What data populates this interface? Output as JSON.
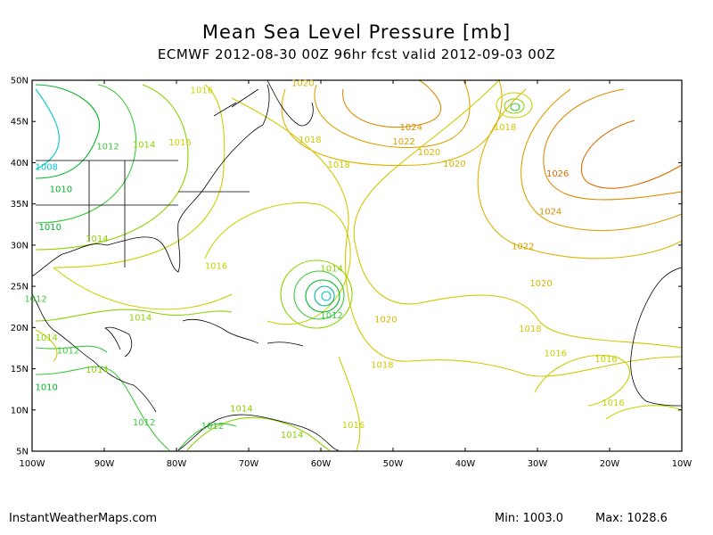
{
  "title": "Mean Sea Level Pressure [mb]",
  "subtitle": "ECMWF 2012-08-30 00Z 96hr fcst valid 2012-09-03 00Z",
  "footer": {
    "source": "InstantWeatherMaps.com",
    "min_label": "Min:",
    "min_value": "1003.0",
    "max_label": "Max:",
    "max_value": "1028.6"
  },
  "axes": {
    "lat_labels": [
      "50N",
      "45N",
      "40N",
      "35N",
      "30N",
      "25N",
      "20N",
      "15N",
      "10N",
      "5N"
    ],
    "lon_labels": [
      "100W",
      "90W",
      "80W",
      "70W",
      "60W",
      "50W",
      "40W",
      "30W",
      "20W",
      "10W"
    ]
  },
  "colors": {
    "c1008": "#00c8c8",
    "c1010": "#00b428",
    "c1012": "#3cc83c",
    "c1014": "#8cd200",
    "c1016": "#c8d200",
    "c1018": "#d2c800",
    "c1020": "#dcb400",
    "c1022": "#dca000",
    "c1024": "#dc8c00",
    "c1026": "#dc6e00",
    "land": "#000000"
  },
  "contour_labels": [
    {
      "text": "1016",
      "lon": -76.5,
      "lat": 48.8,
      "level": "c1016"
    },
    {
      "text": "1020",
      "lon": -62.5,
      "lat": 49.7,
      "level": "c1020"
    },
    {
      "text": "1024",
      "lon": -47.5,
      "lat": 44.3,
      "level": "c1024"
    },
    {
      "text": "1022",
      "lon": -48.5,
      "lat": 42.6,
      "level": "c1022"
    },
    {
      "text": "1020",
      "lon": -45,
      "lat": 41.3,
      "level": "c1020"
    },
    {
      "text": "1018",
      "lon": -61.5,
      "lat": 42.8,
      "level": "c1018"
    },
    {
      "text": "1018",
      "lon": -57.5,
      "lat": 39.8,
      "level": "c1018"
    },
    {
      "text": "1020",
      "lon": -41.5,
      "lat": 39.9,
      "level": "c1020"
    },
    {
      "text": "1018",
      "lon": -34.5,
      "lat": 44.3,
      "level": "c1018"
    },
    {
      "text": "1026",
      "lon": -27.2,
      "lat": 38.7,
      "level": "c1026"
    },
    {
      "text": "1024",
      "lon": -28.2,
      "lat": 34.1,
      "level": "c1024"
    },
    {
      "text": "1022",
      "lon": -32,
      "lat": 29.9,
      "level": "c1022"
    },
    {
      "text": "1020",
      "lon": -29.5,
      "lat": 25.4,
      "level": "c1020"
    },
    {
      "text": "1018",
      "lon": -31,
      "lat": 19.9,
      "level": "c1018"
    },
    {
      "text": "1016",
      "lon": -27.5,
      "lat": 16.9,
      "level": "c1016"
    },
    {
      "text": "1016",
      "lon": -20.5,
      "lat": 16.2,
      "level": "c1016"
    },
    {
      "text": "1016",
      "lon": -19.5,
      "lat": 10.9,
      "level": "c1016"
    },
    {
      "text": "1008",
      "lon": -98,
      "lat": 39.5,
      "level": "c1008"
    },
    {
      "text": "1010",
      "lon": -96,
      "lat": 36.8,
      "level": "c1010"
    },
    {
      "text": "1010",
      "lon": -97.5,
      "lat": 32.2,
      "level": "c1010"
    },
    {
      "text": "1012",
      "lon": -89.5,
      "lat": 42,
      "level": "c1012"
    },
    {
      "text": "1014",
      "lon": -84.5,
      "lat": 42.2,
      "level": "c1014"
    },
    {
      "text": "1016",
      "lon": -79.5,
      "lat": 42.5,
      "level": "c1016"
    },
    {
      "text": "1014",
      "lon": -91,
      "lat": 30.8,
      "level": "c1014"
    },
    {
      "text": "1016",
      "lon": -74.5,
      "lat": 27.5,
      "level": "c1016"
    },
    {
      "text": "1014",
      "lon": -58.5,
      "lat": 27.2,
      "level": "c1014"
    },
    {
      "text": "1012",
      "lon": -58.5,
      "lat": 21.5,
      "level": "c1012"
    },
    {
      "text": "1012",
      "lon": -99.5,
      "lat": 23.5,
      "level": "c1012"
    },
    {
      "text": "1014",
      "lon": -85,
      "lat": 21.2,
      "level": "c1014"
    },
    {
      "text": "1020",
      "lon": -51,
      "lat": 21,
      "level": "c1020"
    },
    {
      "text": "1018",
      "lon": -51.5,
      "lat": 15.5,
      "level": "c1018"
    },
    {
      "text": "1014",
      "lon": -98,
      "lat": 18.8,
      "level": "c1014"
    },
    {
      "text": "1012",
      "lon": -95,
      "lat": 17.2,
      "level": "c1012"
    },
    {
      "text": "1014",
      "lon": -91,
      "lat": 14.9,
      "level": "c1014"
    },
    {
      "text": "1010",
      "lon": -98,
      "lat": 12.8,
      "level": "c1010"
    },
    {
      "text": "1012",
      "lon": -84.5,
      "lat": 8.5,
      "level": "c1012"
    },
    {
      "text": "1012",
      "lon": -75,
      "lat": 8.1,
      "level": "c1012"
    },
    {
      "text": "1014",
      "lon": -71,
      "lat": 10.2,
      "level": "c1014"
    },
    {
      "text": "1014",
      "lon": -64,
      "lat": 7,
      "level": "c1014"
    },
    {
      "text": "1016",
      "lon": -55.5,
      "lat": 8.2,
      "level": "c1016"
    }
  ]
}
